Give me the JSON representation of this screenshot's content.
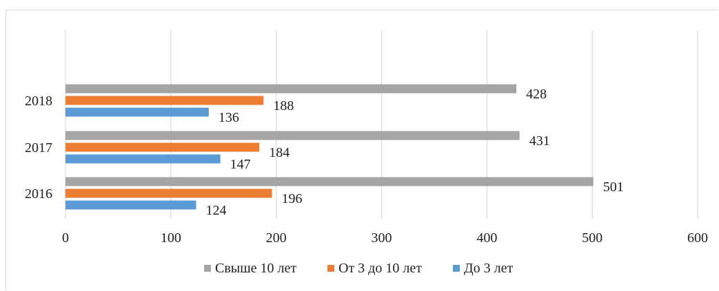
{
  "chart_data": {
    "type": "bar",
    "orientation": "horizontal",
    "categories": [
      "2016",
      "2017",
      "2018"
    ],
    "series": [
      {
        "name": "До 3 лет",
        "color": "#5b9bd5",
        "values": [
          124,
          147,
          136
        ]
      },
      {
        "name": "От 3 до 10 лет",
        "color": "#ed7d31",
        "values": [
          196,
          184,
          188
        ]
      },
      {
        "name": "Свыше 10 лет",
        "color": "#a5a5a5",
        "values": [
          501,
          431,
          428
        ]
      }
    ],
    "xlim": [
      0,
      600
    ],
    "xticks": [
      "0",
      "100",
      "200",
      "300",
      "400",
      "500",
      "600"
    ],
    "legend": {
      "placement": "bottom",
      "order": [
        "Свыше 10 лет",
        "От 3 до 10 лет",
        "До 3 лет"
      ]
    },
    "grid": {
      "vertical": true,
      "color": "#d9d9d9"
    },
    "data_labels": true
  }
}
